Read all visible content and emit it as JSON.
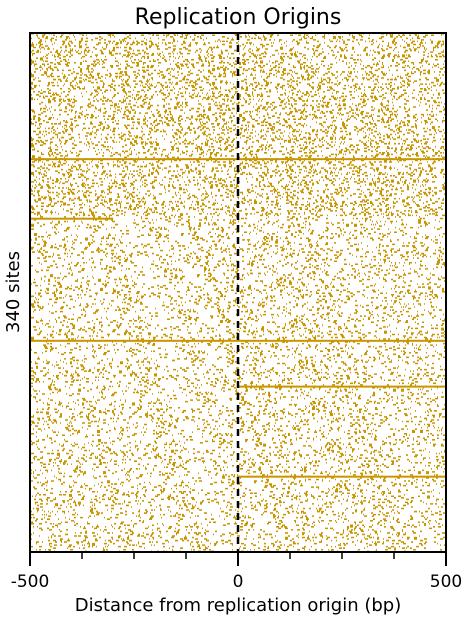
{
  "chart_data": {
    "type": "heatmap",
    "title": "Replication Origins",
    "xlabel": "Distance from replication origin (bp)",
    "ylabel": "340 sites",
    "xlim": [
      -500,
      500
    ],
    "x_ticks": [
      -500,
      0,
      500
    ],
    "x_minor_ticks": [
      -375,
      -250,
      -125,
      125,
      250,
      375
    ],
    "reference_line": {
      "x": 0,
      "style": "dashed",
      "color": "#000000"
    },
    "rows": 340,
    "mark_color": "#c89600",
    "grid": false,
    "legend": "none",
    "highlighted_rows": [
      {
        "row": 82,
        "extent": [
          -500,
          500
        ]
      },
      {
        "row": 121,
        "extent": [
          -500,
          -300
        ]
      },
      {
        "row": 201,
        "extent": [
          -500,
          500
        ]
      },
      {
        "row": 231,
        "extent": [
          0,
          500
        ]
      },
      {
        "row": 290,
        "extent": [
          0,
          500
        ]
      }
    ]
  }
}
